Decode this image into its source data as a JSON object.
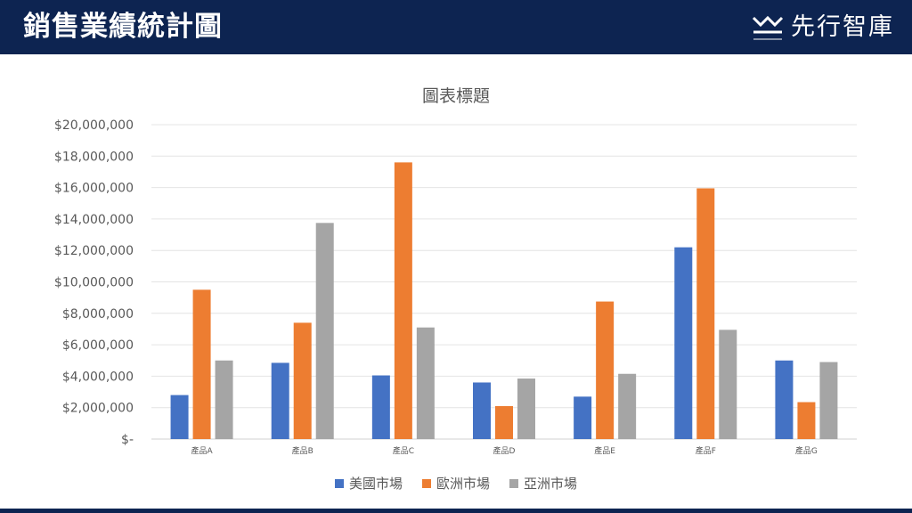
{
  "header": {
    "title": "銷售業績統計圖",
    "logo_text": "先行智庫"
  },
  "colors": {
    "header_bg": "#0d2451",
    "series": [
      "#4472c4",
      "#ed7d31",
      "#a5a5a5"
    ]
  },
  "chart_data": {
    "type": "bar",
    "title": "圖表標題",
    "xlabel": "",
    "ylabel": "",
    "categories": [
      "產品A",
      "產品B",
      "產品C",
      "產品D",
      "產品E",
      "產品F",
      "產品G"
    ],
    "series": [
      {
        "name": "美國市場",
        "values": [
          2800000,
          4850000,
          4050000,
          3600000,
          2700000,
          12200000,
          5000000
        ]
      },
      {
        "name": "歐洲市場",
        "values": [
          9500000,
          7400000,
          17600000,
          2100000,
          8750000,
          15950000,
          2350000
        ]
      },
      {
        "name": "亞洲市場",
        "values": [
          5000000,
          13750000,
          7100000,
          3850000,
          4150000,
          6950000,
          4900000
        ]
      }
    ],
    "ylim": [
      0,
      20000000
    ],
    "yticks": [
      0,
      2000000,
      4000000,
      6000000,
      8000000,
      10000000,
      12000000,
      14000000,
      16000000,
      18000000,
      20000000
    ],
    "ytick_labels": [
      "$-",
      "$2,000,000",
      "$4,000,000",
      "$6,000,000",
      "$8,000,000",
      "$10,000,000",
      "$12,000,000",
      "$14,000,000",
      "$16,000,000",
      "$18,000,000",
      "$20,000,000"
    ],
    "grid": true,
    "legend_position": "bottom"
  }
}
